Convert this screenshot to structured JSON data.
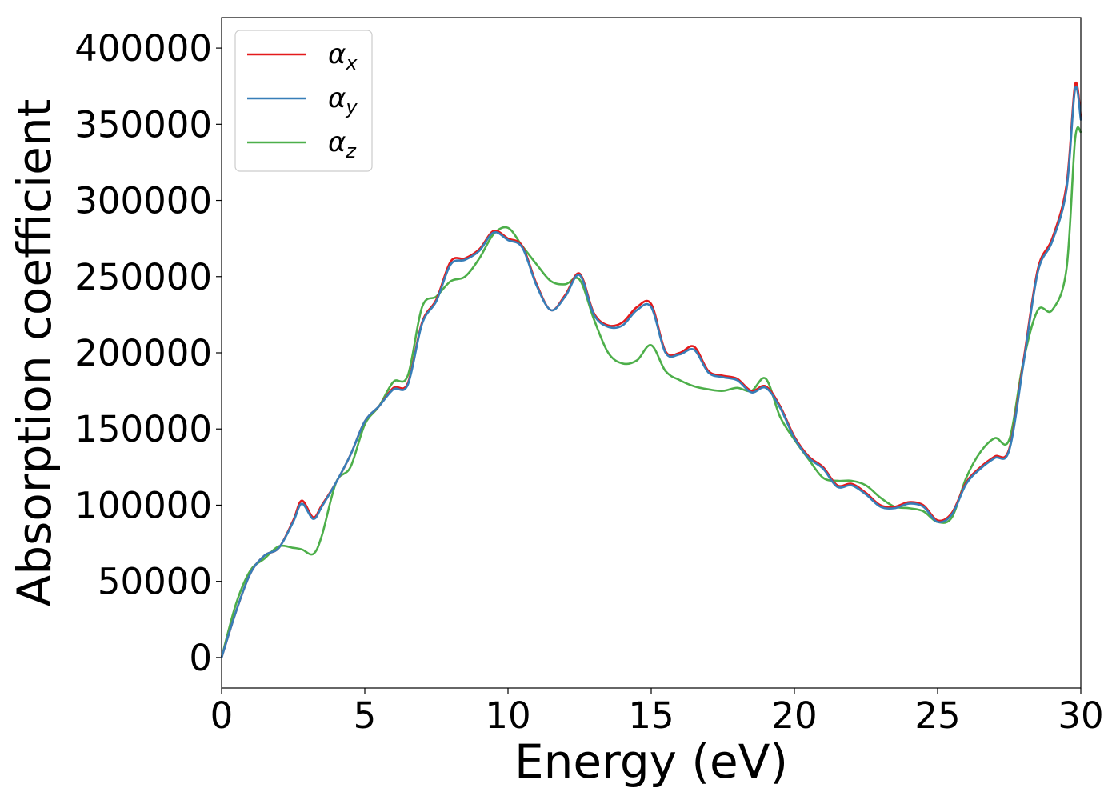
{
  "chart_data": {
    "type": "line",
    "title": "",
    "xlabel": "Energy (eV)",
    "ylabel": "Absorption coefficient",
    "xlim": [
      0,
      30
    ],
    "ylim": [
      -20000,
      420000
    ],
    "xticks": [
      0,
      5,
      10,
      15,
      20,
      25,
      30
    ],
    "yticks": [
      0,
      50000,
      100000,
      150000,
      200000,
      250000,
      300000,
      350000,
      400000
    ],
    "grid": false,
    "legend_position": "top-left",
    "x": [
      0,
      0.5,
      1,
      1.5,
      2,
      2.5,
      2.8,
      3.2,
      3.5,
      4,
      4.5,
      5,
      5.5,
      6,
      6.5,
      7,
      7.5,
      8,
      8.5,
      9,
      9.5,
      10,
      10.5,
      11,
      11.5,
      12,
      12.5,
      13,
      13.5,
      14,
      14.5,
      15,
      15.5,
      16,
      16.5,
      17,
      17.5,
      18,
      18.5,
      19,
      19.5,
      20,
      20.5,
      21,
      21.5,
      22,
      22.5,
      23,
      23.5,
      24,
      24.5,
      25,
      25.5,
      26,
      26.5,
      27,
      27.5,
      28,
      28.5,
      29,
      29.5,
      29.8,
      30
    ],
    "series": [
      {
        "name": "α",
        "subscript": "x",
        "color": "#e41a1c",
        "values": [
          0,
          30000,
          55000,
          67000,
          72000,
          90000,
          103000,
          92000,
          100000,
          115000,
          133000,
          155000,
          165000,
          177000,
          180000,
          220000,
          235000,
          260000,
          262000,
          268000,
          280000,
          275000,
          270000,
          245000,
          228000,
          238000,
          252000,
          226000,
          218000,
          220000,
          230000,
          232000,
          201000,
          200000,
          204000,
          188000,
          185000,
          183000,
          175000,
          178000,
          165000,
          145000,
          132000,
          125000,
          113000,
          114000,
          108000,
          100000,
          99000,
          102000,
          100000,
          90000,
          95000,
          115000,
          125000,
          132000,
          137000,
          195000,
          255000,
          275000,
          310000,
          376000,
          355000
        ]
      },
      {
        "name": "α",
        "subscript": "y",
        "color": "#377eb8",
        "values": [
          0,
          30000,
          55000,
          67000,
          72000,
          89000,
          101000,
          91000,
          99000,
          115000,
          133000,
          155000,
          165000,
          176000,
          179000,
          219000,
          234000,
          258000,
          261000,
          267000,
          279000,
          274000,
          269000,
          244000,
          228000,
          237000,
          251000,
          225000,
          217000,
          218000,
          228000,
          230000,
          200000,
          199000,
          202000,
          187000,
          184000,
          182000,
          174000,
          177000,
          164000,
          144000,
          131000,
          124000,
          112000,
          113000,
          107000,
          99000,
          98000,
          101000,
          99000,
          89000,
          94000,
          114000,
          124000,
          131000,
          136000,
          193000,
          253000,
          273000,
          307000,
          373000,
          353000
        ]
      },
      {
        "name": "α",
        "subscript": "z",
        "color": "#4daf4a",
        "values": [
          0,
          35000,
          57000,
          65000,
          73000,
          72000,
          71000,
          68000,
          80000,
          115000,
          125000,
          153000,
          165000,
          181000,
          185000,
          230000,
          237000,
          247000,
          250000,
          262000,
          278000,
          282000,
          270000,
          258000,
          247000,
          245000,
          248000,
          222000,
          200000,
          193000,
          195000,
          205000,
          188000,
          182000,
          178000,
          176000,
          175000,
          177000,
          175000,
          183000,
          158000,
          143000,
          130000,
          118000,
          116000,
          116000,
          113000,
          105000,
          99000,
          98000,
          96000,
          89000,
          92000,
          118000,
          135000,
          144000,
          143000,
          195000,
          228000,
          228000,
          255000,
          340000,
          345000
        ]
      }
    ]
  }
}
